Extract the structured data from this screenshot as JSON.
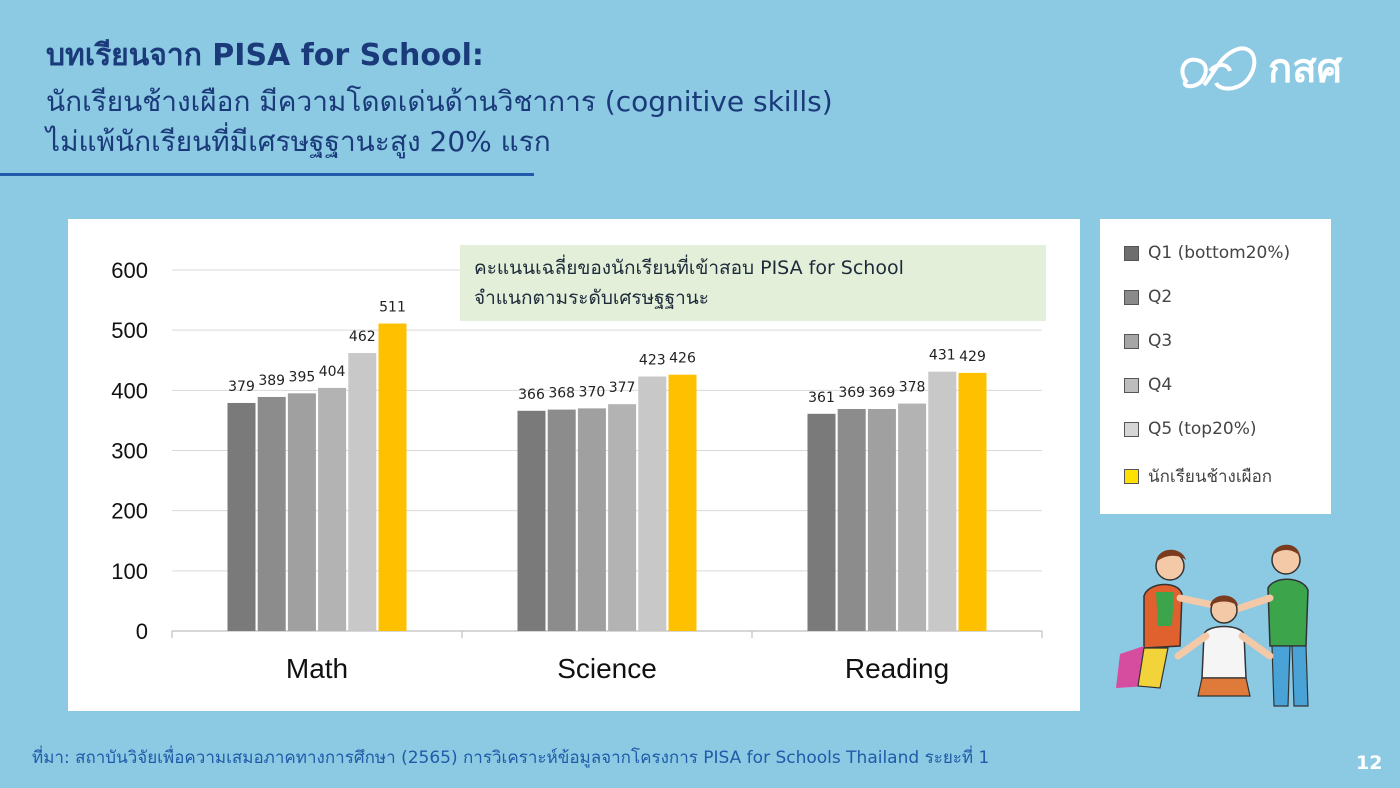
{
  "slide": {
    "title_line1": "บทเรียนจาก PISA for School:",
    "title_line2": "นักเรียนช้างเผือก มีความโดดเด่นด้านวิชาการ (cognitive skills)",
    "title_line3": "ไม่แพ้นักเรียนที่มีเศรษฐฐานะสูง 20% แรก",
    "logo_text": "กสศ",
    "source": "ที่มา: สถาบันวิจัยเพื่อความเสมอภาคทางการศึกษา (2565) การวิเคราะห์ข้อมูลจากโครงการ PISA for Schools Thailand ระยะที่ 1",
    "page_number": "12"
  },
  "chart_data": {
    "type": "bar",
    "annotation_line1": "คะแนนเฉลี่ยของนักเรียนที่เข้าสอบ PISA for School",
    "annotation_line2": "จำแนกตามระดับเศรษฐฐานะ",
    "categories": [
      "Math",
      "Science",
      "Reading"
    ],
    "ylim": [
      0,
      600
    ],
    "yticks": [
      0,
      100,
      200,
      300,
      400,
      500,
      600
    ],
    "grid": true,
    "legend_position": "right",
    "series": [
      {
        "name": "Q1 (bottom20%)",
        "color": "#7a7a7a",
        "values": [
          379,
          366,
          361
        ]
      },
      {
        "name": "Q2",
        "color": "#8c8c8c",
        "values": [
          389,
          368,
          369
        ]
      },
      {
        "name": "Q3",
        "color": "#a0a0a0",
        "values": [
          395,
          370,
          369
        ]
      },
      {
        "name": "Q4",
        "color": "#b3b3b3",
        "values": [
          404,
          377,
          378
        ]
      },
      {
        "name": "Q5 (top20%)",
        "color": "#c8c8c8",
        "values": [
          462,
          423,
          431
        ]
      },
      {
        "name": "นักเรียนช้างเผือก",
        "color": "#ffc000",
        "values": [
          511,
          426,
          429
        ]
      }
    ]
  },
  "legend_swatch_colors": {
    "Q1 (bottom20%)": "#6e6e6e",
    "Q2": "#8a8a8a",
    "Q3": "#a6a6a6",
    "Q4": "#bdbdbd",
    "Q5 (top20%)": "#d6d6d6",
    "นักเรียนช้างเผือก": "#ffe100"
  }
}
